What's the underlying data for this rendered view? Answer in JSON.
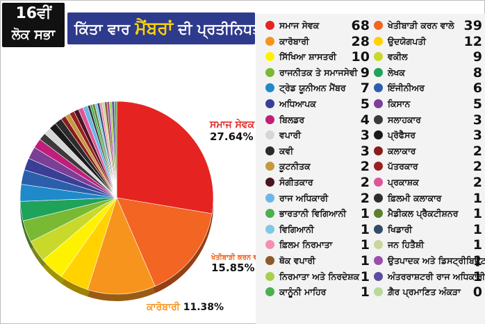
{
  "header": {
    "badge_number": "16ਵੀਂ",
    "badge_subtitle": "ਲੋਕ ਸਭਾ",
    "title_prefix": "ਕਿੱਤਾ ਵਾਰ",
    "title_highlight": "ਮੈਂਬਰਾਂ",
    "title_suffix": "ਦੀ ਪ੍ਰਤੀਨਿਧਤਾ"
  },
  "slice_labels": [
    {
      "name": "ਸਮਾਜ ਸੇਵਕ",
      "percent": "27.64%"
    },
    {
      "name": "ਖੇਤੀਬਾੜੀ ਕਰਨ ਵਾਲੇ",
      "percent": "15.85%"
    },
    {
      "name": "ਕਾਰੋਬਾਰੀ",
      "percent": "11.38%"
    }
  ],
  "chart_data": {
    "type": "pie",
    "title": "ਕਿੱਤਾ ਵਾਰ ਮੈਂਬਰਾਂ ਦੀ ਪ੍ਰਤੀਨਿਧਤਾ",
    "categories": [
      "ਸਮਾਜ ਸੇਵਕ",
      "ਖੇਤੀਬਾੜੀ ਕਰਨ ਵਾਲੇ",
      "ਕਾਰੋਬਾਰੀ",
      "ਉਦਯੋਗਪਤੀ",
      "ਸਿੱਖਿਆ ਸ਼ਾਸਤਰੀ",
      "ਵਕੀਲ",
      "ਰਾਜਨੀਤਕ ਤੇ ਸਮਾਜਸੇਵੀ",
      "ਲੇਖਕ",
      "ਟ੍ਰੇਡ ਯੂਨੀਅਨ ਮੈਂਬਰ",
      "ਇੰਜੀਨੀਅਰ",
      "ਅਧਿਆਪਕ",
      "ਕਿਸਾਨ",
      "ਬਿਲਡਰ",
      "ਸਲਾਹਕਾਰ",
      "ਵਪਾਰੀ",
      "ਪ੍ਰੋਫੈਸਰ",
      "ਕਵੀ",
      "ਕਲਾਕਾਰ",
      "ਕੂਟਨੀਤਕ",
      "ਪੱਤਰਕਾਰ",
      "ਸੰਗੀਤਕਾਰ",
      "ਪ੍ਰਕਾਸ਼ਕ",
      "ਰਾਜ ਅਧਿਕਾਰੀ",
      "ਫ਼ਿਲਮੀ ਕਲਾਕਾਰ",
      "ਭਾਰਤਾਨੀ ਵਿਗਿਆਨੀ",
      "ਮੈਡੀਕਲ ਪ੍ਰੈਕਟੀਸ਼ਨਰ",
      "ਵਿਗਿਆਨੀ",
      "ਖਿਡਾਰੀ",
      "ਫ਼ਿਲਮ ਨਿਰਮਾਤਾ",
      "ਜਨ ਹਿਤੈਸ਼ੀ",
      "ਥੋਕ ਵਪਾਰੀ",
      "ਉਤਪਾਦਕ ਅਤੇ ਡਿਸਟ੍ਰੀਬਿਊਟਰ",
      "ਨਿਰਮਾਤਾ ਅਤੇ ਨਿਰਦੇਸ਼ਕ",
      "ਅੰਤਰਰਾਸ਼ਟਰੀ ਰਾਜ ਅਧਿਕਾਰੀ",
      "ਕਾਨੂੰਨੀ ਮਾਹਿਰ",
      "ਗ਼ੈਰ ਪ੍ਰਮਾਣਿਤ ਅੰਕੜਾ"
    ],
    "values": [
      68,
      39,
      28,
      12,
      10,
      9,
      9,
      8,
      7,
      6,
      5,
      5,
      4,
      3,
      3,
      3,
      3,
      2,
      2,
      2,
      2,
      2,
      2,
      1,
      1,
      1,
      1,
      1,
      1,
      1,
      1,
      1,
      1,
      1,
      1,
      0
    ],
    "colors": [
      "#e52421",
      "#f26522",
      "#f7941d",
      "#ffd200",
      "#fff200",
      "#c8d92b",
      "#79b933",
      "#1fa25a",
      "#1f8ac9",
      "#2b5fac",
      "#3a3e97",
      "#7b3f98",
      "#c01e7a",
      "#3a3a3a",
      "#d6d6d6",
      "#1a1a1a",
      "#2b2b2b",
      "#8a1c1c",
      "#c49a3e",
      "#9b1f1f",
      "#4a1622",
      "#e0559a",
      "#6db6e6",
      "#2e2e2e",
      "#4caf50",
      "#5d7f2e",
      "#7ec9e5",
      "#334a6b",
      "#f48fb1",
      "#c7d69b",
      "#8b5a2b",
      "#9c4dab",
      "#a9cf4f",
      "#5a4ea1",
      "#4caf50",
      "#b9d99a"
    ]
  }
}
